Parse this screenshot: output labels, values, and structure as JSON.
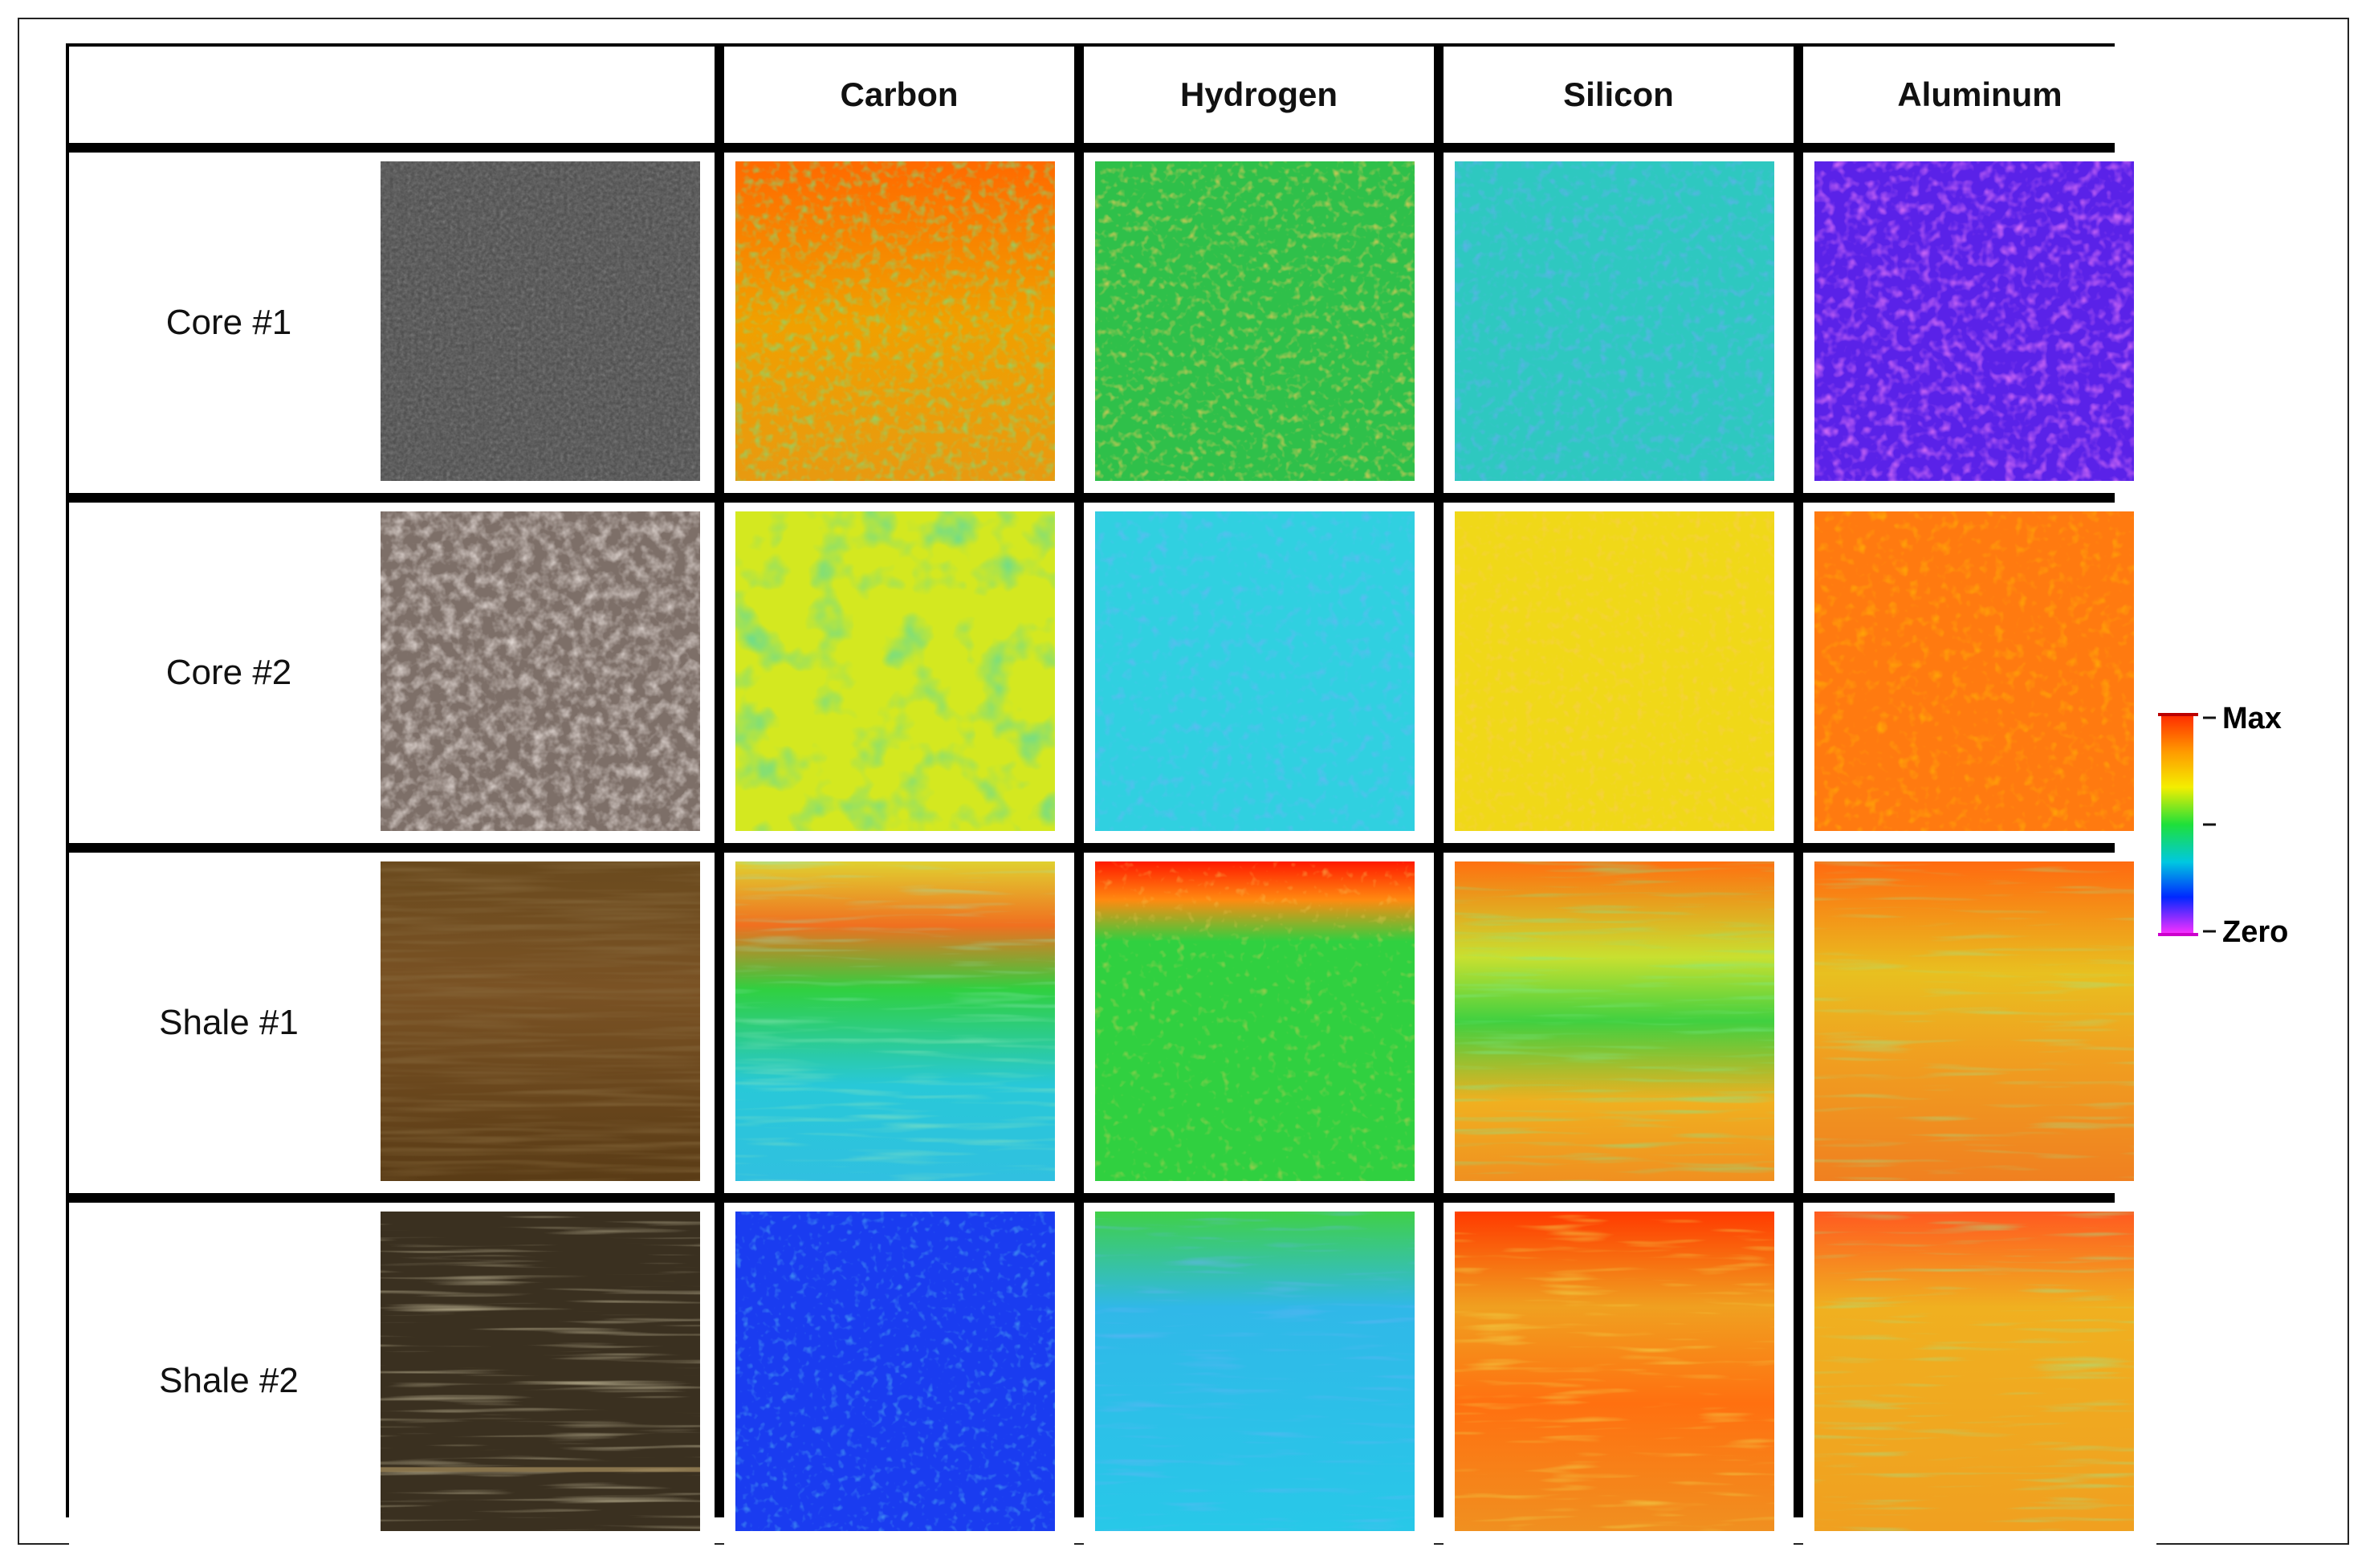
{
  "columns": {
    "c1": "Carbon",
    "c2": "Hydrogen",
    "c3": "Silicon",
    "c4": "Aluminum"
  },
  "rows": [
    {
      "label": "Core #1"
    },
    {
      "label": "Core #2"
    },
    {
      "label": "Shale #1"
    },
    {
      "label": "Shale #2"
    }
  ],
  "legend": {
    "max_label": "Max",
    "zero_label": "Zero",
    "colors": [
      "#ff2a00",
      "#ff9a00",
      "#f4ee00",
      "#1ee03a",
      "#00c8e0",
      "#0028ff",
      "#ff30ff"
    ]
  },
  "palette": {
    "red": "#ff3a00",
    "orange": "#ff8c00",
    "yellow": "#f0e800",
    "green": "#26d43c",
    "cyan": "#2ac8e6",
    "blue": "#1e46f0",
    "purple": "#7a22ee",
    "magenta": "#d83cf0"
  }
}
